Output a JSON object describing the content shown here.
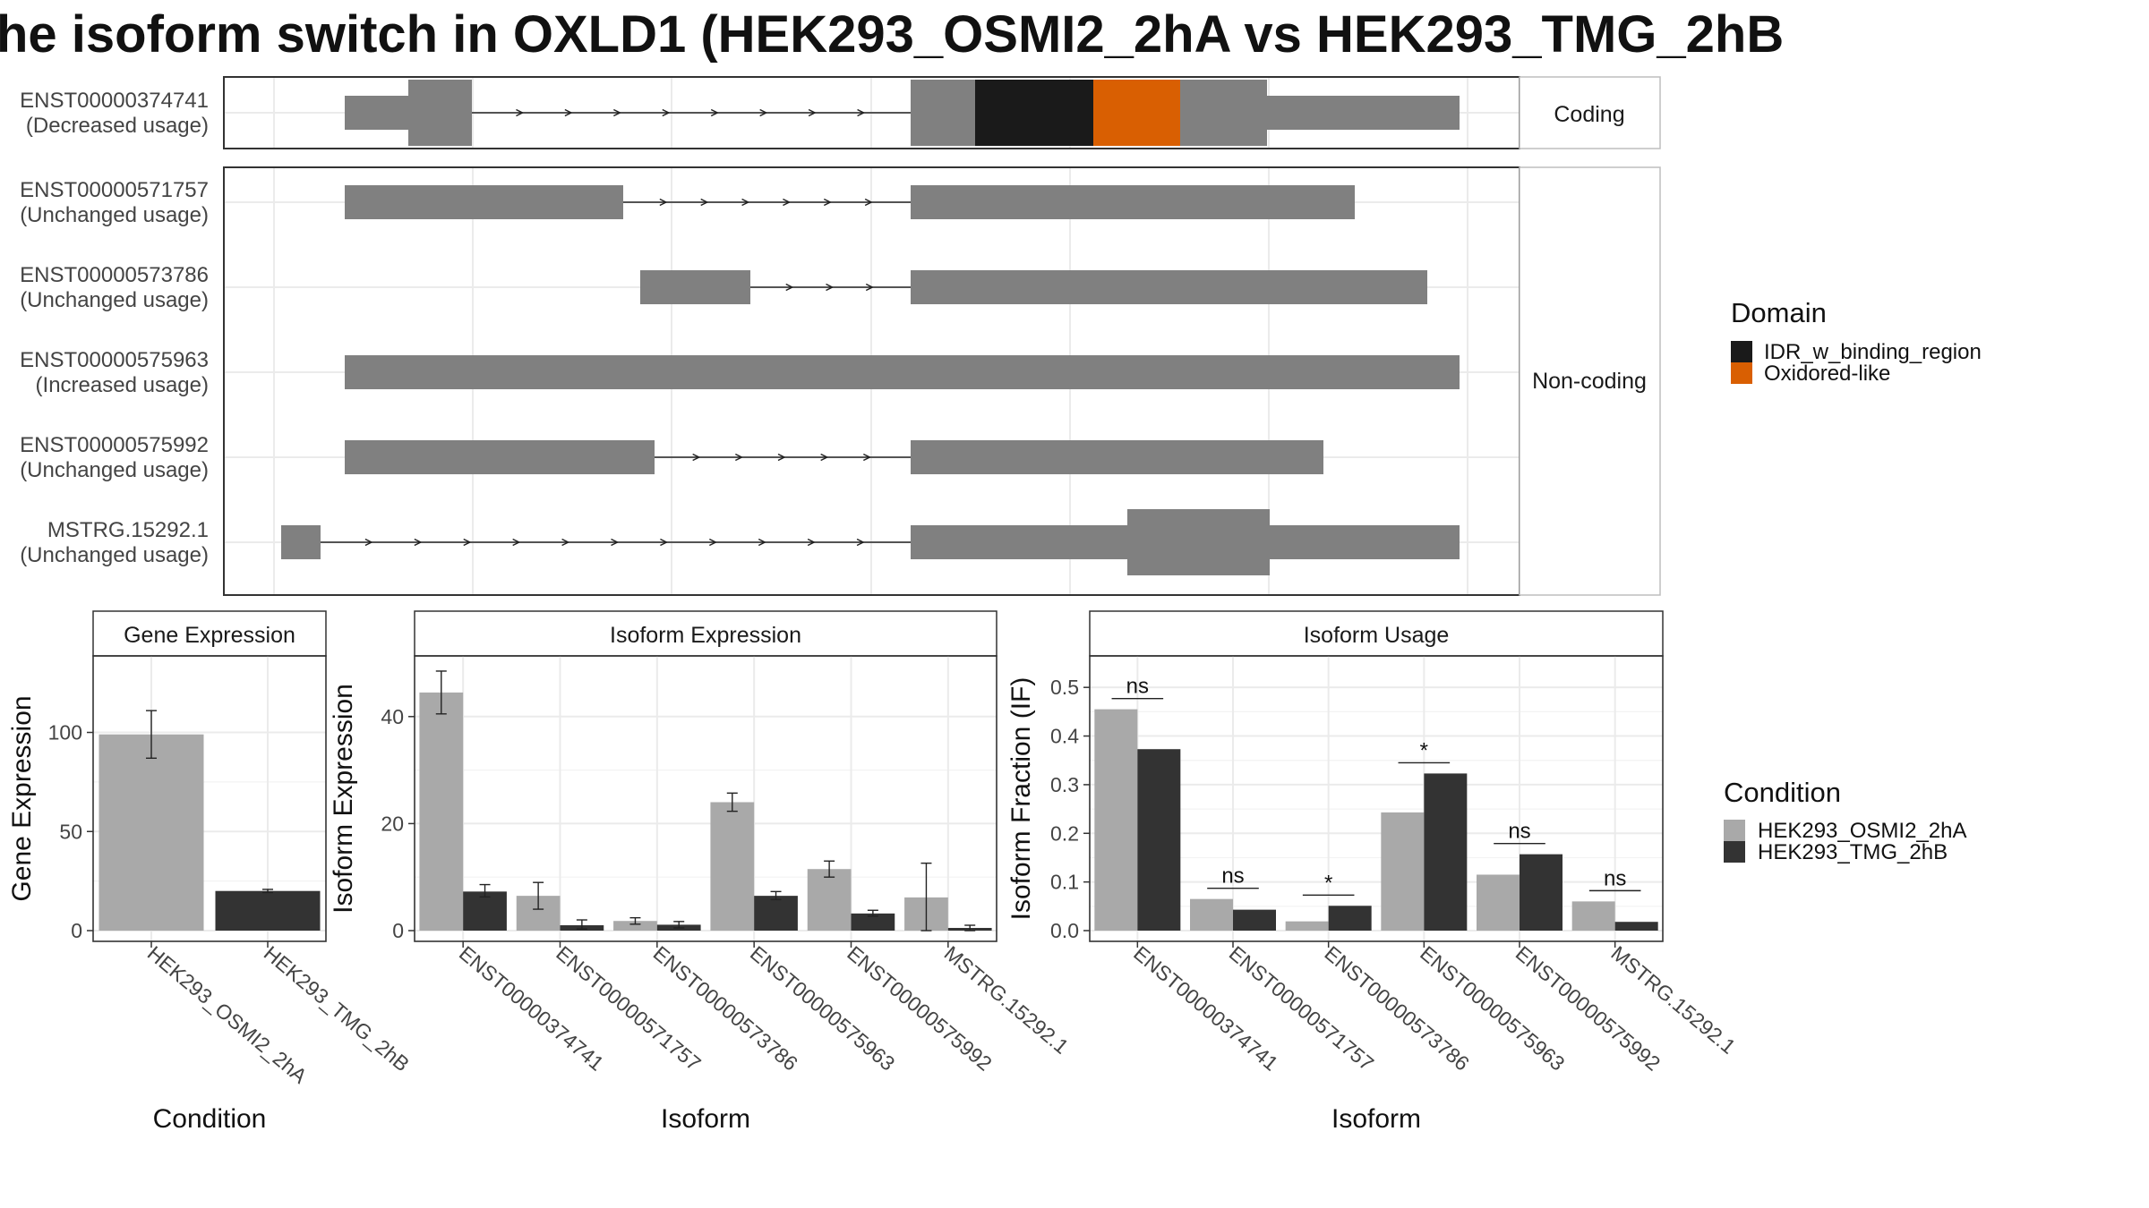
{
  "title": "he isoform switch in OXLD1 (HEK293_OSMI2_2hA vs HEK293_TMG_2hB",
  "colors": {
    "exon": "#808080",
    "idr": "#1a1a1a",
    "oxidored": "#d95f02",
    "cond_a": "#a9a9a9",
    "cond_b": "#333333",
    "grid": "#ebebeb",
    "strip_bg": "#ffffff",
    "panel_border": "#333333"
  },
  "transcripts": {
    "strip_coding": "Coding",
    "strip_noncoding": "Non-coding",
    "items": [
      {
        "id": "ENST00000374741",
        "usage": "(Decreased usage)",
        "group": "coding"
      },
      {
        "id": "ENST00000571757",
        "usage": "(Unchanged usage)",
        "group": "noncoding"
      },
      {
        "id": "ENST00000573786",
        "usage": "(Unchanged usage)",
        "group": "noncoding"
      },
      {
        "id": "ENST00000575963",
        "usage": "(Increased usage)",
        "group": "noncoding"
      },
      {
        "id": "ENST00000575992",
        "usage": "(Unchanged usage)",
        "group": "noncoding"
      },
      {
        "id": "MSTRG.15292.1",
        "usage": "(Unchanged usage)",
        "group": "noncoding"
      }
    ]
  },
  "legend_domain": {
    "title": "Domain",
    "items": [
      "IDR_w_binding_region",
      "Oxidored-like"
    ]
  },
  "legend_condition": {
    "title": "Condition",
    "items": [
      "HEK293_OSMI2_2hA",
      "HEK293_TMG_2hB"
    ]
  },
  "chart_data": [
    {
      "type": "bar",
      "title": "Gene Expression",
      "xlabel": "Condition",
      "ylabel": "Gene Expression",
      "categories": [
        "HEK293_OSMI2_2hA",
        "HEK293_TMG_2hB"
      ],
      "values": [
        99,
        20
      ],
      "errors": [
        [
          87,
          111
        ],
        [
          19.2,
          20.8
        ]
      ],
      "yticks": [
        0,
        50,
        100
      ],
      "ylim": [
        0,
        135
      ]
    },
    {
      "type": "bar",
      "title": "Isoform Expression",
      "xlabel": "Isoform",
      "ylabel": "Isoform Expression",
      "categories": [
        "ENST00000374741",
        "ENST00000571757",
        "ENST00000573786",
        "ENST00000575963",
        "ENST00000575992",
        "MSTRG.15292.1"
      ],
      "series": [
        {
          "name": "HEK293_OSMI2_2hA",
          "values": [
            44.5,
            6.5,
            1.8,
            24,
            11.5,
            6.2
          ],
          "errors": [
            [
              40.5,
              48.5
            ],
            [
              4,
              9
            ],
            [
              1.2,
              2.4
            ],
            [
              22.3,
              25.7
            ],
            [
              10,
              13
            ],
            [
              0,
              12.6
            ]
          ]
        },
        {
          "name": "HEK293_TMG_2hB",
          "values": [
            7.3,
            1,
            1.1,
            6.5,
            3.2,
            0.5
          ],
          "errors": [
            [
              6.3,
              8.6
            ],
            [
              0.3,
              2
            ],
            [
              0.5,
              1.7
            ],
            [
              5.8,
              7.3
            ],
            [
              2.7,
              3.8
            ],
            [
              0,
              1
            ]
          ]
        }
      ],
      "yticks": [
        0,
        20,
        40
      ],
      "ylim": [
        0,
        50
      ]
    },
    {
      "type": "bar",
      "title": "Isoform Usage",
      "xlabel": "Isoform",
      "ylabel": "Isoform Fraction (IF)",
      "categories": [
        "ENST00000374741",
        "ENST00000571757",
        "ENST00000573786",
        "ENST00000575963",
        "ENST00000575992",
        "MSTRG.15292.1"
      ],
      "series": [
        {
          "name": "HEK293_OSMI2_2hA",
          "values": [
            0.455,
            0.065,
            0.019,
            0.243,
            0.115,
            0.06
          ]
        },
        {
          "name": "HEK293_TMG_2hB",
          "values": [
            0.373,
            0.043,
            0.051,
            0.323,
            0.157,
            0.018
          ]
        }
      ],
      "significance": [
        "ns",
        "ns",
        "*",
        "*",
        "ns",
        "ns"
      ],
      "yticks": [
        0.0,
        0.1,
        0.2,
        0.3,
        0.4,
        0.5
      ],
      "ylim": [
        0,
        0.55
      ]
    }
  ]
}
